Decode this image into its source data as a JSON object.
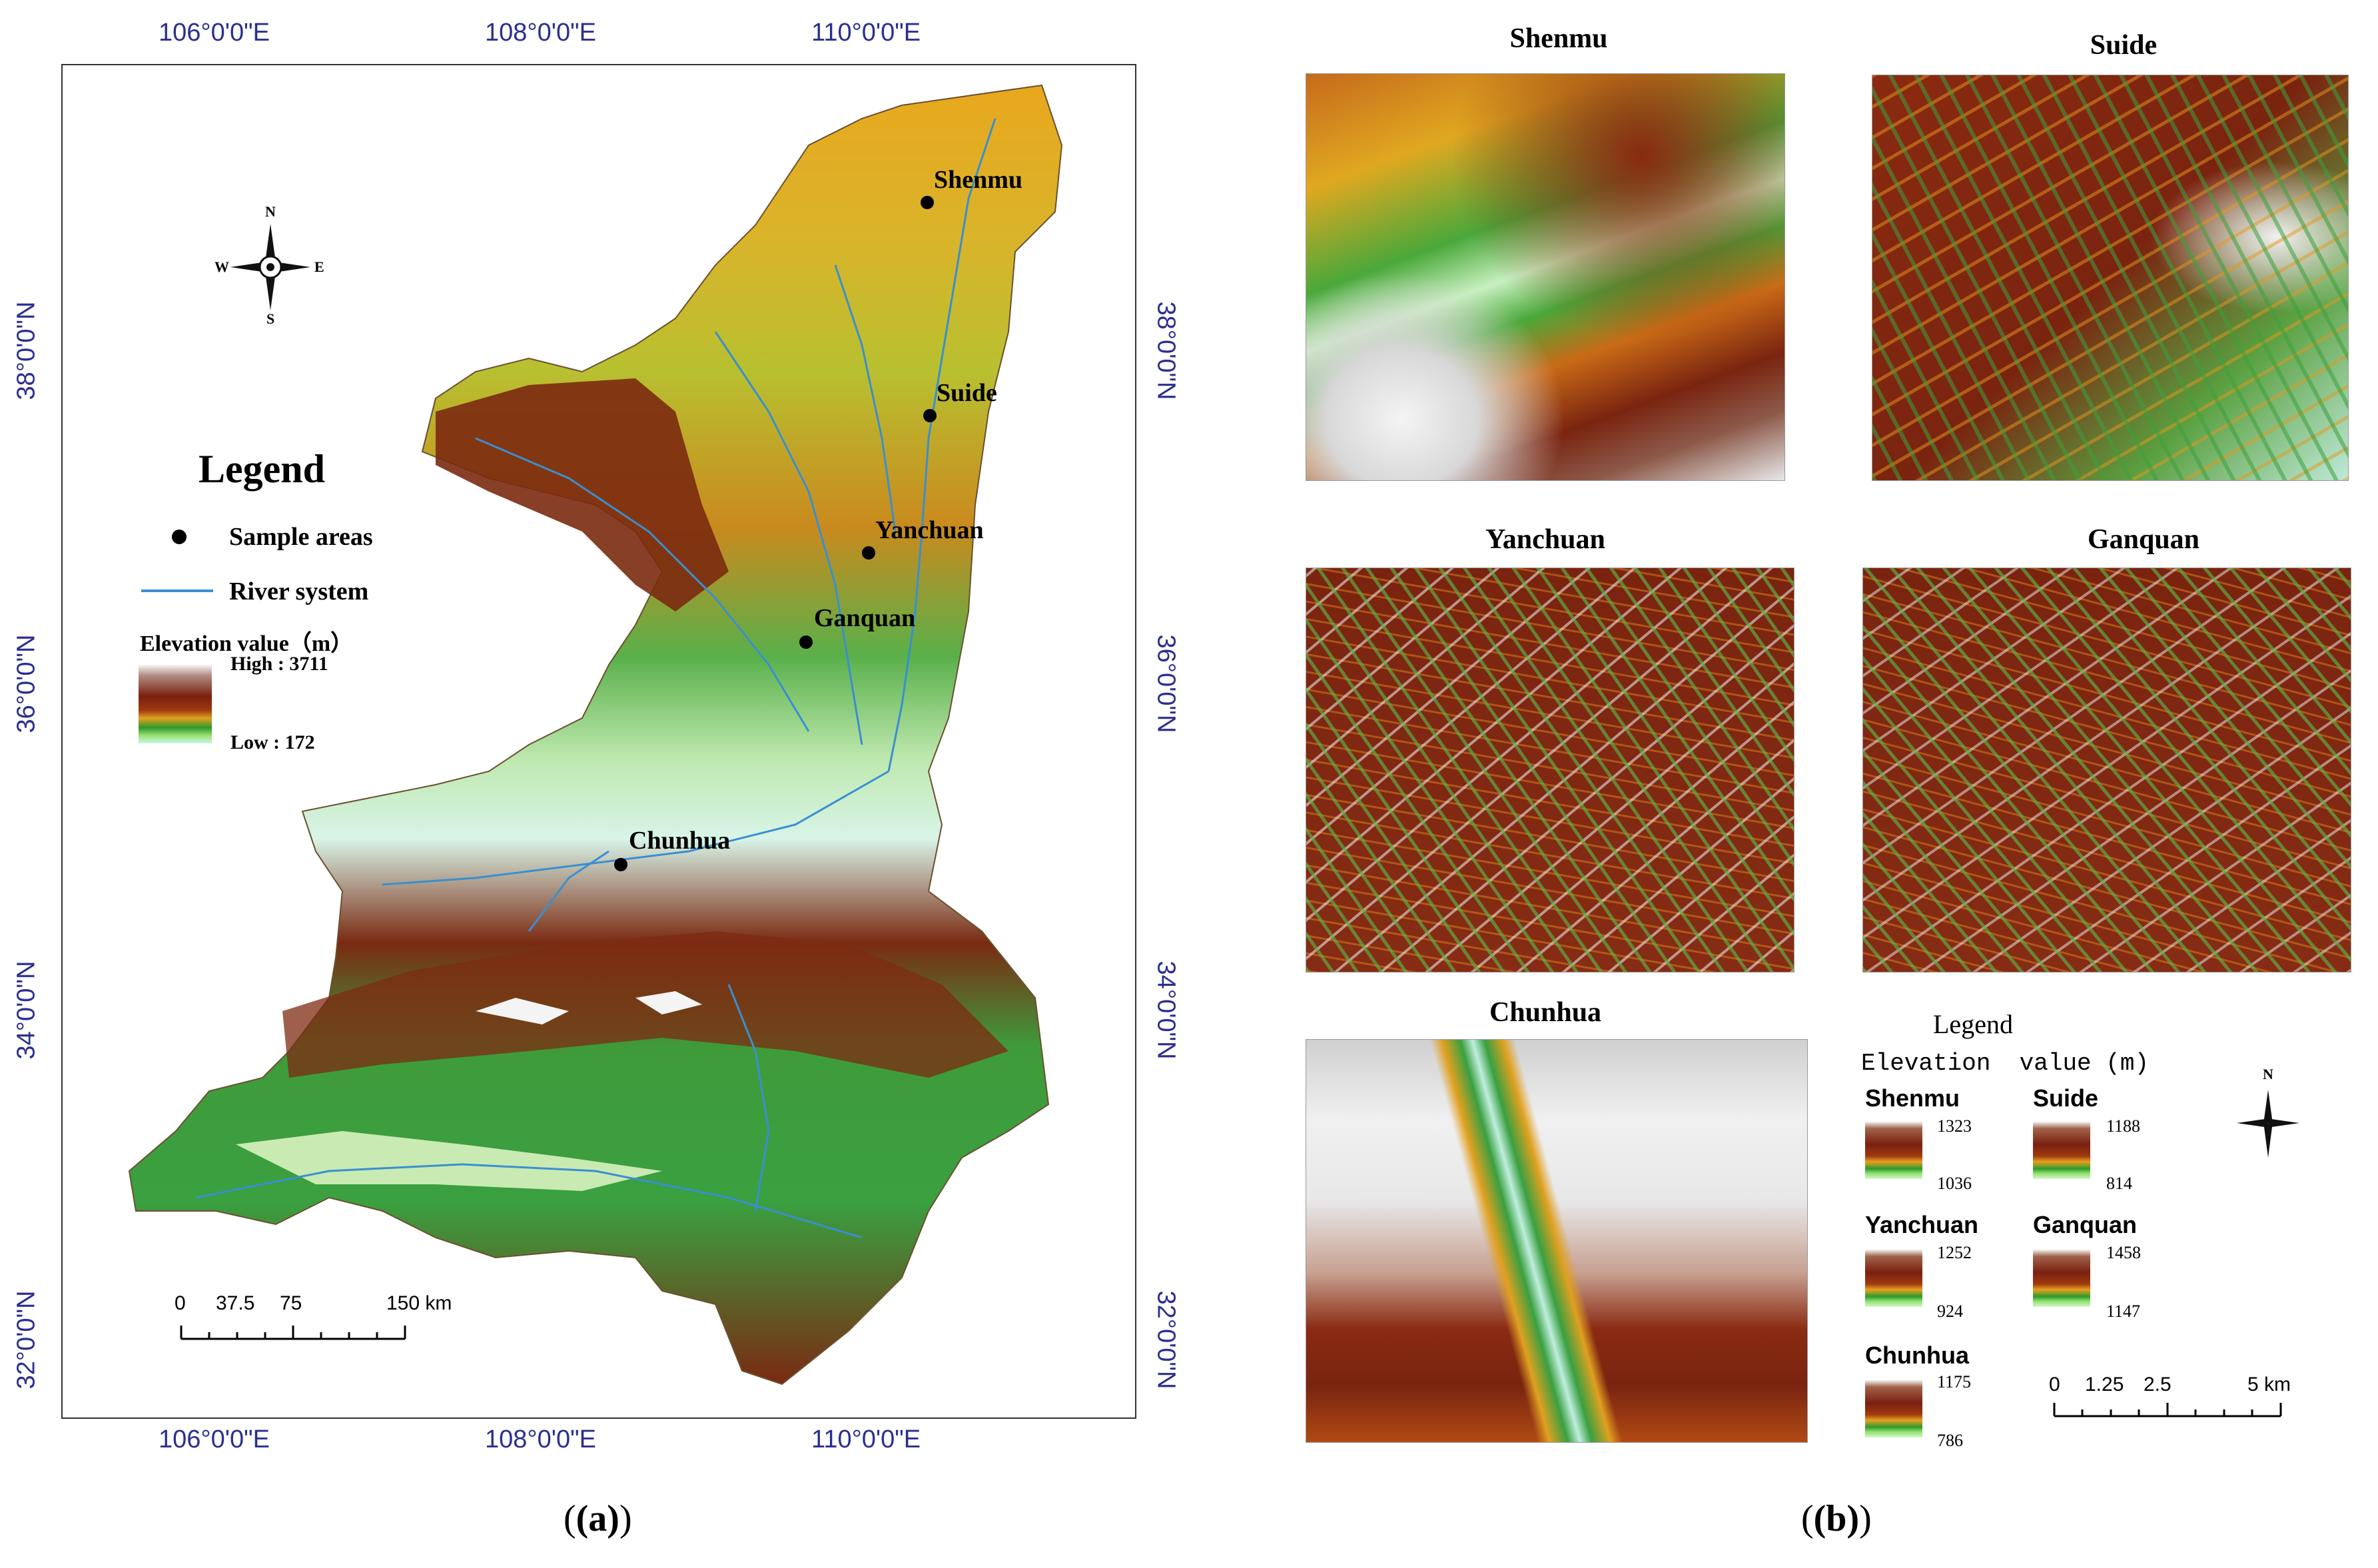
{
  "panel_a": {
    "top_longitudes": [
      "106°0'0\"E",
      "108°0'0\"E",
      "110°0'0\"E"
    ],
    "bottom_longitudes": [
      "106°0'0\"E",
      "108°0'0\"E",
      "110°0'0\"E"
    ],
    "left_latitudes": [
      "38°0'0\"N",
      "36°0'0\"N",
      "34°0'0\"N",
      "32°0'0\"N"
    ],
    "right_latitudes": [
      "38°0'0\"N",
      "36°0'0\"N",
      "34°0'0\"N",
      "32°0'0\"N"
    ],
    "north_arrow": {
      "n": "N",
      "s": "S",
      "e": "E",
      "w": "W"
    },
    "legend": {
      "title": "Legend",
      "sample_areas": "Sample areas",
      "river_system": "River system",
      "elevation_title": "Elevation value（m）",
      "high": "High : 3711",
      "low": "Low : 172"
    },
    "sites": [
      {
        "name": "Shenmu"
      },
      {
        "name": "Suide"
      },
      {
        "name": "Yanchuan"
      },
      {
        "name": "Ganquan"
      },
      {
        "name": "Chunhua"
      }
    ],
    "scale_bar": {
      "labels": [
        "0",
        "37.5",
        "75",
        "150 km"
      ]
    },
    "caption": "(a)",
    "colors": {
      "river": "#3a8fd0",
      "coord_text": "#2b2f8f"
    }
  },
  "panel_b": {
    "samples": [
      {
        "title": "Shenmu"
      },
      {
        "title": "Suide"
      },
      {
        "title": "Yanchuan"
      },
      {
        "title": "Ganquan"
      },
      {
        "title": "Chunhua"
      }
    ],
    "legend": {
      "title": "Legend",
      "elevation_title": "Elevation  value (m)",
      "entries": [
        {
          "name": "Shenmu",
          "high": "1323",
          "low": "1036"
        },
        {
          "name": "Suide",
          "high": "1188",
          "low": "814"
        },
        {
          "name": "Yanchuan",
          "high": "1252",
          "low": "924"
        },
        {
          "name": "Ganquan",
          "high": "1458",
          "low": "1147"
        },
        {
          "name": "Chunhua",
          "high": "1175",
          "low": "786"
        }
      ]
    },
    "north_arrow": {
      "n": "N"
    },
    "scale_bar": {
      "labels": [
        "0",
        "1.25",
        "2.5",
        "5 km"
      ]
    },
    "caption": "(b)"
  }
}
